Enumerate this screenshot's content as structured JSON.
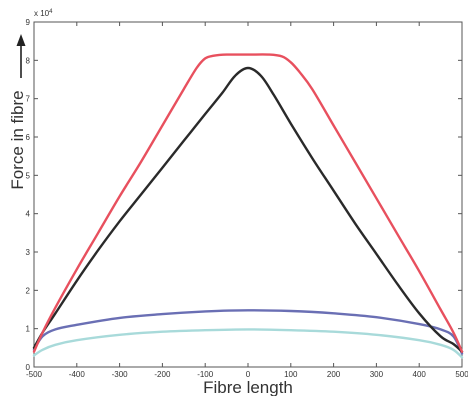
{
  "chart_data": {
    "type": "line",
    "xlabel": "Fibre length",
    "ylabel": "Force in fibre",
    "y_multiplier": "x 10",
    "y_multiplier_exp": "4",
    "xlim": [
      -500,
      500
    ],
    "ylim": [
      0,
      9
    ],
    "xticks": [
      -500,
      -400,
      -300,
      -200,
      -100,
      0,
      100,
      200,
      300,
      400,
      500
    ],
    "yticks": [
      0,
      1,
      2,
      3,
      4,
      5,
      6,
      7,
      8,
      9
    ],
    "grid": false,
    "series": [
      {
        "color": "#e8505e",
        "x": [
          -500,
          -480,
          -450,
          -400,
          -350,
          -300,
          -250,
          -200,
          -150,
          -120,
          -100,
          -80,
          -50,
          0,
          50,
          80,
          100,
          120,
          150,
          200,
          250,
          300,
          350,
          400,
          450,
          480,
          500
        ],
        "y": [
          0.4,
          0.9,
          1.55,
          2.55,
          3.5,
          4.45,
          5.35,
          6.3,
          7.25,
          7.8,
          8.05,
          8.12,
          8.15,
          8.15,
          8.15,
          8.1,
          7.95,
          7.7,
          7.25,
          6.3,
          5.35,
          4.4,
          3.45,
          2.5,
          1.5,
          0.9,
          0.4
        ]
      },
      {
        "color": "#2a2a2a",
        "x": [
          -500,
          -480,
          -450,
          -400,
          -350,
          -300,
          -250,
          -200,
          -150,
          -100,
          -60,
          -30,
          0,
          30,
          60,
          100,
          150,
          200,
          250,
          300,
          350,
          400,
          450,
          480,
          500
        ],
        "y": [
          0.5,
          0.9,
          1.4,
          2.25,
          3.05,
          3.8,
          4.5,
          5.2,
          5.9,
          6.6,
          7.15,
          7.6,
          7.8,
          7.6,
          7.1,
          6.35,
          5.45,
          4.6,
          3.75,
          2.95,
          2.15,
          1.4,
          0.8,
          0.6,
          0.4
        ]
      },
      {
        "color": "#6a6fb4",
        "x": [
          -500,
          -480,
          -450,
          -400,
          -300,
          -200,
          -100,
          0,
          100,
          200,
          300,
          400,
          450,
          480,
          500
        ],
        "y": [
          0.45,
          0.8,
          0.98,
          1.1,
          1.28,
          1.38,
          1.45,
          1.48,
          1.46,
          1.4,
          1.3,
          1.12,
          0.98,
          0.8,
          0.35
        ]
      },
      {
        "color": "#a8dada",
        "x": [
          -500,
          -480,
          -450,
          -400,
          -300,
          -200,
          -100,
          0,
          100,
          200,
          300,
          400,
          450,
          480,
          500
        ],
        "y": [
          0.3,
          0.45,
          0.58,
          0.7,
          0.84,
          0.92,
          0.96,
          0.98,
          0.96,
          0.92,
          0.84,
          0.7,
          0.58,
          0.45,
          0.25
        ]
      }
    ]
  }
}
